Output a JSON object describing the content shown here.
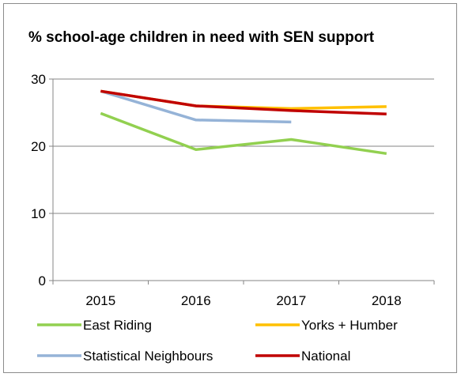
{
  "chart_data": {
    "type": "line",
    "title": "% school-age children in need with SEN support",
    "xlabel": "",
    "ylabel": "",
    "categories": [
      "2015",
      "2016",
      "2017",
      "2018"
    ],
    "ylim": [
      0,
      30
    ],
    "yticks": [
      0,
      10,
      20,
      30
    ],
    "grid": true,
    "legend_position": "bottom",
    "series": [
      {
        "name": "East Riding",
        "color": "#92d050",
        "values": [
          24.9,
          19.5,
          21.0,
          18.9
        ]
      },
      {
        "name": "Yorks + Humber",
        "color": "#ffc000",
        "values": [
          28.2,
          26.0,
          25.6,
          25.9
        ]
      },
      {
        "name": "Statistical Neighbours",
        "color": "#95b3d7",
        "values": [
          28.2,
          23.9,
          23.6,
          null
        ]
      },
      {
        "name": "National",
        "color": "#c00000",
        "values": [
          28.2,
          26.0,
          25.3,
          24.8
        ]
      }
    ]
  }
}
